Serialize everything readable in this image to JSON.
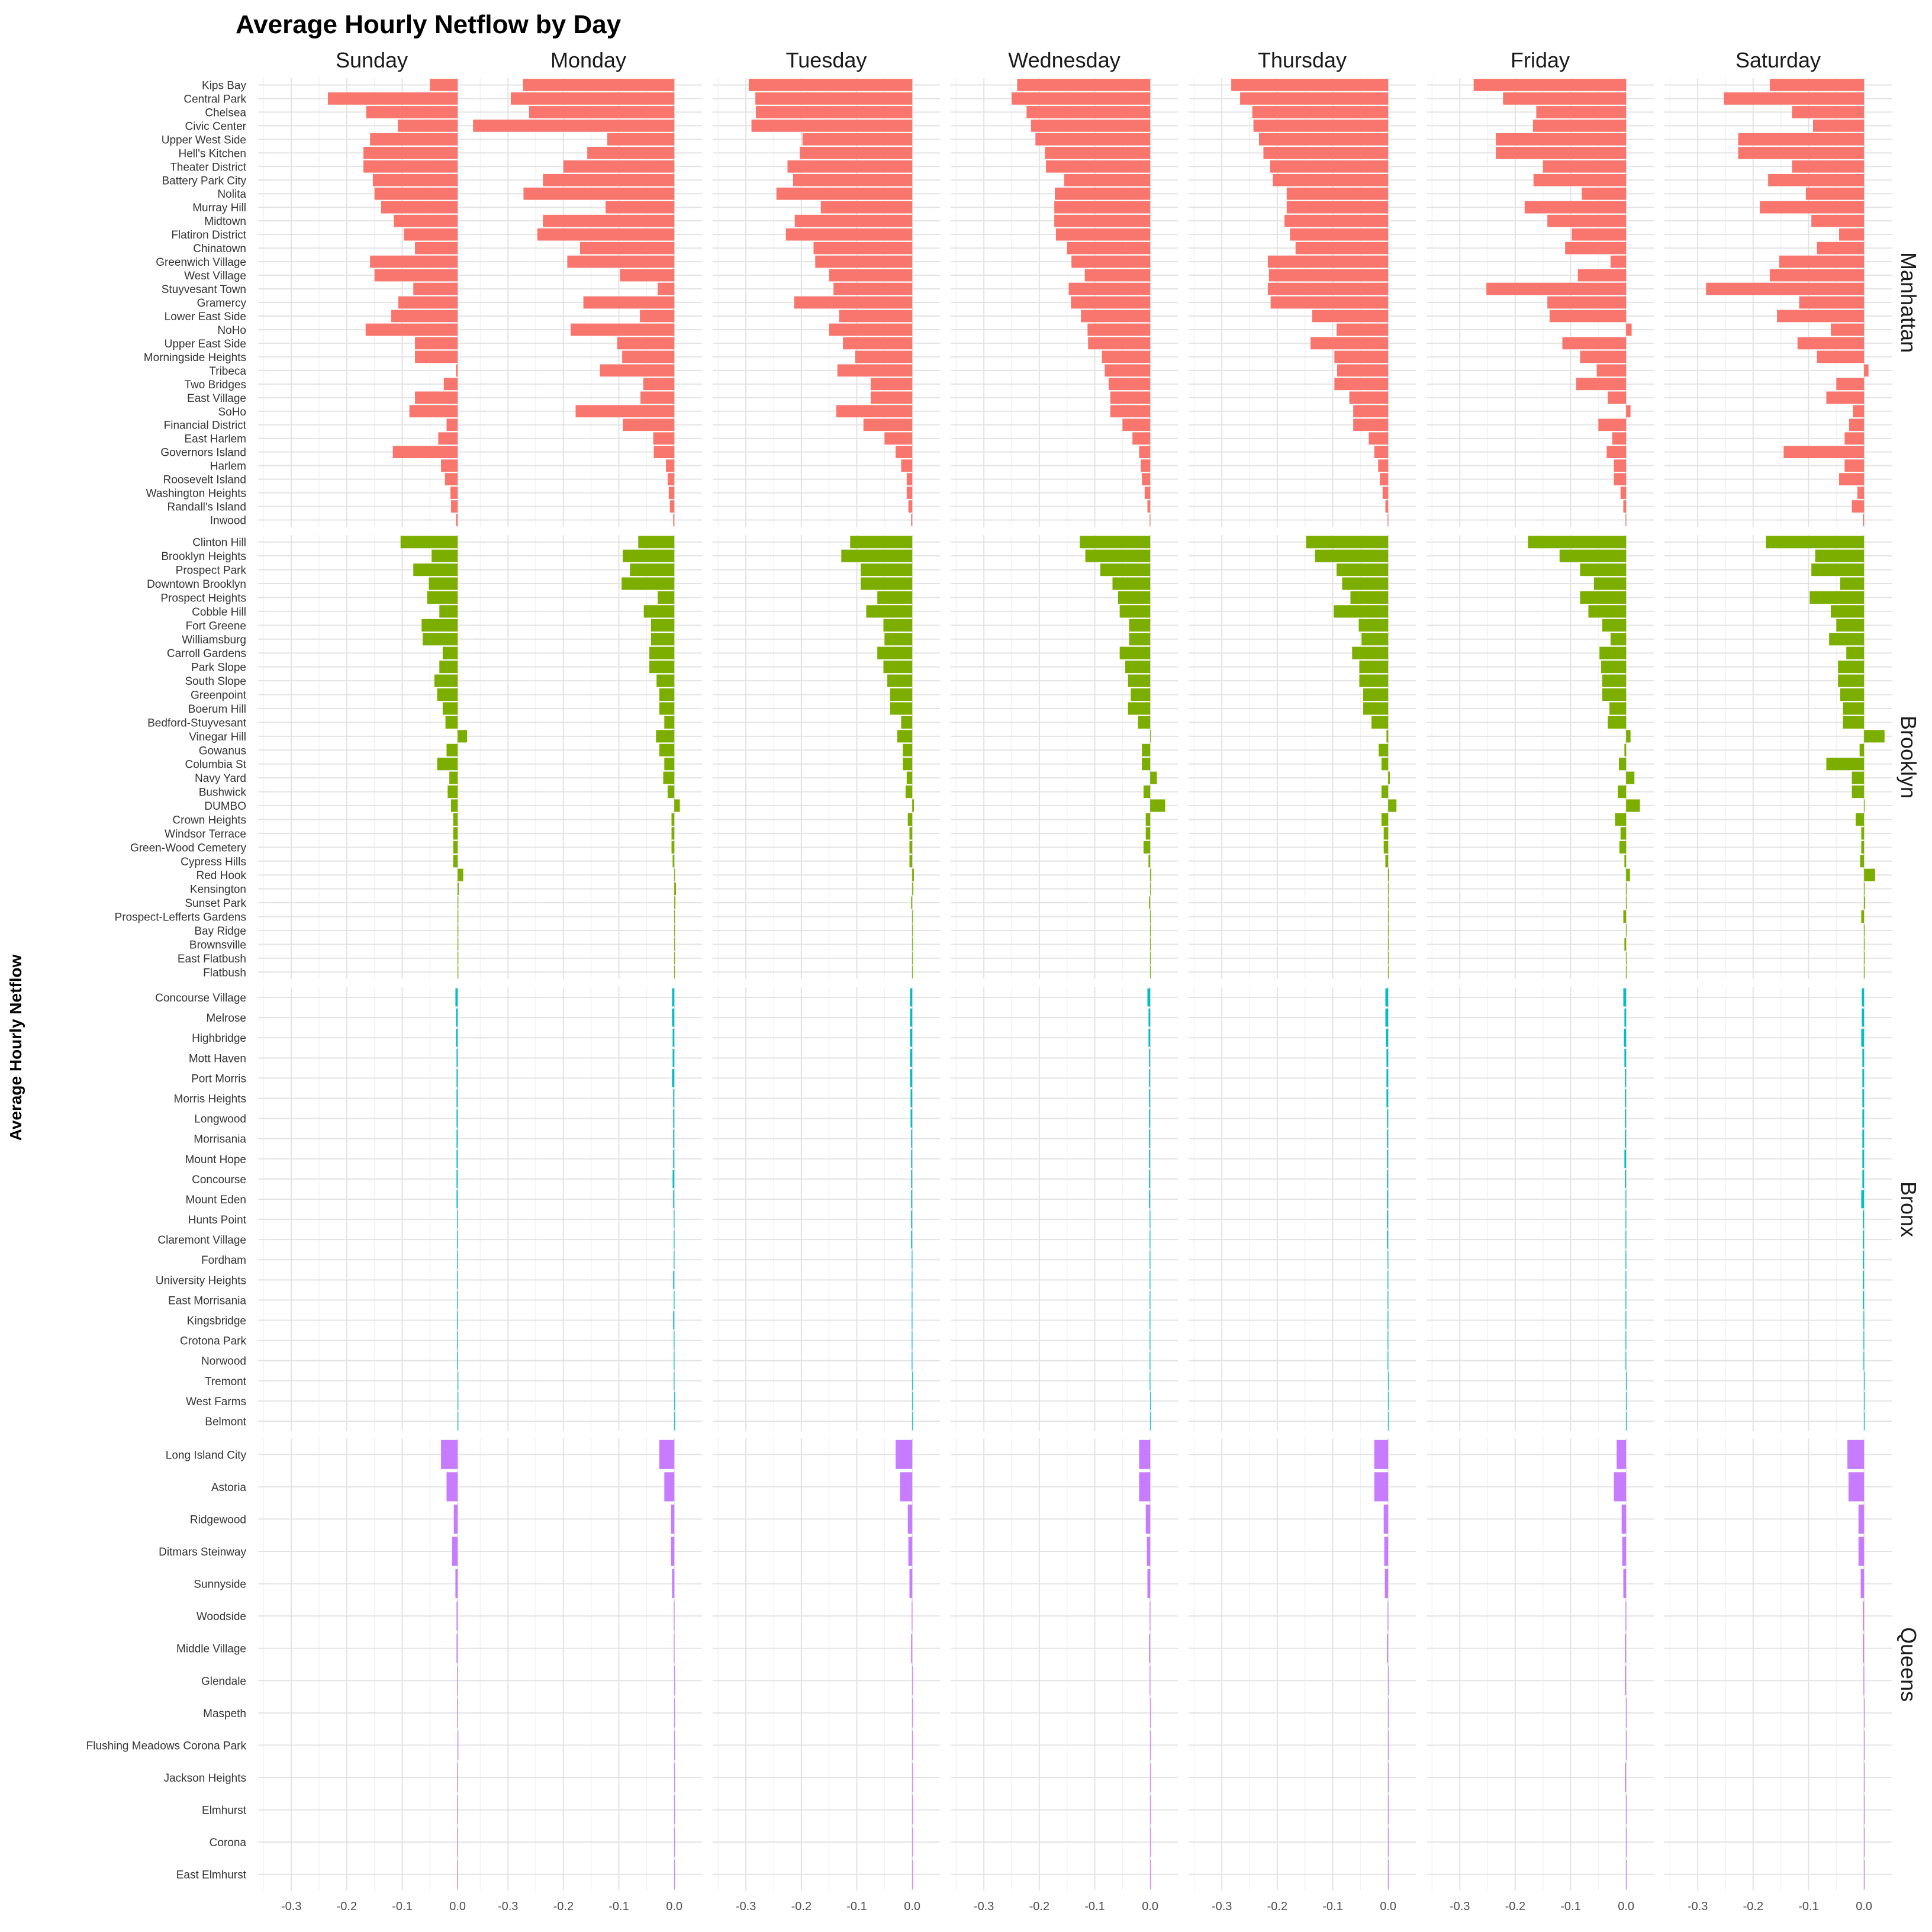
{
  "chart_data": {
    "type": "bar",
    "orientation": "horizontal",
    "title": "Average Hourly Netflow by Day",
    "ylabel": "Average Hourly Netflow",
    "xlim": [
      -0.36,
      0.05
    ],
    "x_ticks": [
      -0.3,
      -0.2,
      -0.1,
      0.0
    ],
    "x_tick_labels": [
      "-0.3",
      "-0.2",
      "-0.1",
      "0.0"
    ],
    "grid": true,
    "days": [
      "Sunday",
      "Monday",
      "Tuesday",
      "Wednesday",
      "Thursday",
      "Friday",
      "Saturday"
    ],
    "colors": {
      "Manhattan": "#F8766D",
      "Brooklyn": "#7CAE00",
      "Bronx": "#00BFC4",
      "Queens": "#C77CFF"
    },
    "boroughs": [
      {
        "name": "Manhattan",
        "neighborhoods": [
          "Kips Bay",
          "Central Park",
          "Chelsea",
          "Civic Center",
          "Upper West Side",
          "Hell's Kitchen",
          "Theater District",
          "Battery Park City",
          "Nolita",
          "Murray Hill",
          "Midtown",
          "Flatiron District",
          "Chinatown",
          "Greenwich Village",
          "West Village",
          "Stuyvesant Town",
          "Gramercy",
          "Lower East Side",
          "NoHo",
          "Upper East Side",
          "Morningside Heights",
          "Tribeca",
          "Two Bridges",
          "East Village",
          "SoHo",
          "Financial District",
          "East Harlem",
          "Governors Island",
          "Harlem",
          "Roosevelt Island",
          "Washington Heights",
          "Randall's Island",
          "Inwood"
        ],
        "values": [
          [
            -0.05,
            -0.234,
            -0.165,
            -0.108,
            -0.158,
            -0.17,
            -0.17,
            -0.153,
            -0.15,
            -0.138,
            -0.115,
            -0.097,
            -0.077,
            -0.158,
            -0.15,
            -0.08,
            -0.107,
            -0.12,
            -0.166,
            -0.077,
            -0.077,
            -0.003,
            -0.025,
            -0.077,
            -0.087,
            -0.02,
            -0.035,
            -0.117,
            -0.03,
            -0.023,
            -0.013,
            -0.012,
            -0.003
          ],
          [
            -0.273,
            -0.295,
            -0.262,
            -0.363,
            -0.121,
            -0.157,
            -0.2,
            -0.237,
            -0.272,
            -0.124,
            -0.237,
            -0.247,
            -0.17,
            -0.193,
            -0.098,
            -0.03,
            -0.164,
            -0.062,
            -0.187,
            -0.103,
            -0.094,
            -0.134,
            -0.056,
            -0.061,
            -0.178,
            -0.093,
            -0.038,
            -0.037,
            -0.015,
            -0.012,
            -0.01,
            -0.008,
            -0.002
          ],
          [
            -0.295,
            -0.283,
            -0.282,
            -0.29,
            -0.198,
            -0.203,
            -0.225,
            -0.215,
            -0.245,
            -0.165,
            -0.212,
            -0.228,
            -0.178,
            -0.175,
            -0.15,
            -0.142,
            -0.213,
            -0.132,
            -0.15,
            -0.125,
            -0.103,
            -0.135,
            -0.075,
            -0.075,
            -0.137,
            -0.088,
            -0.05,
            -0.03,
            -0.02,
            -0.01,
            -0.01,
            -0.007,
            -0.002
          ],
          [
            -0.24,
            -0.25,
            -0.223,
            -0.215,
            -0.207,
            -0.19,
            -0.188,
            -0.155,
            -0.172,
            -0.173,
            -0.173,
            -0.17,
            -0.15,
            -0.142,
            -0.118,
            -0.147,
            -0.143,
            -0.125,
            -0.113,
            -0.112,
            -0.087,
            -0.082,
            -0.075,
            -0.072,
            -0.072,
            -0.05,
            -0.032,
            -0.02,
            -0.017,
            -0.015,
            -0.01,
            -0.005,
            -0.001
          ],
          [
            -0.283,
            -0.267,
            -0.245,
            -0.243,
            -0.233,
            -0.225,
            -0.213,
            -0.208,
            -0.183,
            -0.183,
            -0.187,
            -0.177,
            -0.167,
            -0.217,
            -0.215,
            -0.217,
            -0.212,
            -0.137,
            -0.093,
            -0.14,
            -0.097,
            -0.092,
            -0.097,
            -0.07,
            -0.063,
            -0.063,
            -0.035,
            -0.025,
            -0.018,
            -0.015,
            -0.01,
            -0.005,
            -0.001
          ],
          [
            -0.275,
            -0.222,
            -0.162,
            -0.168,
            -0.235,
            -0.235,
            -0.15,
            -0.167,
            -0.08,
            -0.183,
            -0.142,
            -0.098,
            -0.11,
            -0.028,
            -0.087,
            -0.252,
            -0.142,
            -0.138,
            0.01,
            -0.115,
            -0.083,
            -0.053,
            -0.09,
            -0.033,
            0.008,
            -0.05,
            -0.025,
            -0.035,
            -0.022,
            -0.022,
            -0.01,
            -0.005,
            -0.001
          ],
          [
            -0.17,
            -0.253,
            -0.13,
            -0.092,
            -0.227,
            -0.227,
            -0.13,
            -0.173,
            -0.105,
            -0.188,
            -0.095,
            -0.045,
            -0.085,
            -0.153,
            -0.17,
            -0.285,
            -0.117,
            -0.157,
            -0.06,
            -0.12,
            -0.085,
            0.008,
            -0.05,
            -0.068,
            -0.02,
            -0.027,
            -0.035,
            -0.145,
            -0.035,
            -0.045,
            -0.012,
            -0.022,
            -0.002
          ]
        ]
      },
      {
        "name": "Brooklyn",
        "neighborhoods": [
          "Clinton Hill",
          "Brooklyn Heights",
          "Prospect Park",
          "Downtown Brooklyn",
          "Prospect Heights",
          "Cobble Hill",
          "Fort Greene",
          "Williamsburg",
          "Carroll Gardens",
          "Park Slope",
          "South Slope",
          "Greenpoint",
          "Boerum Hill",
          "Bedford-Stuyvesant",
          "Vinegar Hill",
          "Gowanus",
          "Columbia St",
          "Navy Yard",
          "Bushwick",
          "DUMBO",
          "Crown Heights",
          "Windsor Terrace",
          "Green-Wood Cemetery",
          "Cypress Hills",
          "Red Hook",
          "Kensington",
          "Sunset Park",
          "Prospect-Lefferts Gardens",
          "Bay Ridge",
          "Brownsville",
          "East Flatbush",
          "Flatbush"
        ],
        "values": [
          [
            -0.103,
            -0.047,
            -0.08,
            -0.052,
            -0.055,
            -0.033,
            -0.065,
            -0.063,
            -0.027,
            -0.033,
            -0.042,
            -0.037,
            -0.027,
            -0.022,
            0.017,
            -0.02,
            -0.037,
            -0.015,
            -0.018,
            -0.012,
            -0.008,
            -0.008,
            -0.008,
            -0.008,
            0.01,
            0.002,
            0.001,
            0.001,
            0.001,
            0.001,
            0.001,
            0.001
          ],
          [
            -0.065,
            -0.093,
            -0.08,
            -0.095,
            -0.03,
            -0.055,
            -0.042,
            -0.042,
            -0.045,
            -0.045,
            -0.032,
            -0.027,
            -0.027,
            -0.018,
            -0.033,
            -0.027,
            -0.018,
            -0.02,
            -0.012,
            0.01,
            -0.005,
            -0.005,
            -0.005,
            -0.003,
            0.0,
            0.003,
            0.002,
            0.0,
            0.0,
            0.0,
            0.0,
            0.0
          ],
          [
            -0.112,
            -0.128,
            -0.093,
            -0.093,
            -0.063,
            -0.083,
            -0.052,
            -0.05,
            -0.063,
            -0.052,
            -0.045,
            -0.04,
            -0.04,
            -0.02,
            -0.027,
            -0.017,
            -0.017,
            -0.01,
            -0.012,
            0.003,
            -0.008,
            -0.005,
            -0.005,
            -0.005,
            0.003,
            0.002,
            -0.002,
            0.0,
            0.0,
            0.0,
            0.0,
            0.0
          ],
          [
            -0.127,
            -0.117,
            -0.09,
            -0.068,
            -0.058,
            -0.055,
            -0.038,
            -0.038,
            -0.055,
            -0.045,
            -0.04,
            -0.035,
            -0.04,
            -0.022,
            0.0,
            -0.015,
            -0.015,
            0.012,
            -0.012,
            0.027,
            -0.008,
            -0.008,
            -0.012,
            -0.003,
            0.002,
            0.0,
            -0.002,
            0.0,
            0.0,
            0.0,
            0.0,
            0.0
          ],
          [
            -0.148,
            -0.132,
            -0.093,
            -0.083,
            -0.068,
            -0.098,
            -0.053,
            -0.048,
            -0.065,
            -0.052,
            -0.052,
            -0.045,
            -0.045,
            -0.03,
            -0.003,
            -0.017,
            -0.012,
            0.003,
            -0.012,
            0.015,
            -0.012,
            -0.008,
            -0.008,
            -0.005,
            0.002,
            0.0,
            0.0,
            0.0,
            0.0,
            0.0,
            0.0,
            0.0
          ],
          [
            -0.177,
            -0.12,
            -0.083,
            -0.058,
            -0.083,
            -0.068,
            -0.043,
            -0.028,
            -0.048,
            -0.045,
            -0.043,
            -0.043,
            -0.03,
            -0.033,
            0.008,
            -0.003,
            -0.013,
            0.015,
            -0.015,
            0.025,
            -0.02,
            -0.01,
            -0.012,
            -0.003,
            0.007,
            0.0,
            0.0,
            -0.005,
            0.0,
            -0.003,
            0.0,
            0.0
          ],
          [
            -0.177,
            -0.088,
            -0.095,
            -0.043,
            -0.098,
            -0.06,
            -0.05,
            -0.063,
            -0.032,
            -0.047,
            -0.047,
            -0.043,
            -0.038,
            -0.038,
            0.037,
            -0.008,
            -0.068,
            -0.022,
            -0.022,
            0.0,
            -0.015,
            -0.005,
            -0.005,
            -0.007,
            0.02,
            0.0,
            0.002,
            -0.005,
            0.001,
            0.0,
            0.0,
            0.0
          ]
        ]
      },
      {
        "name": "Bronx",
        "neighborhoods": [
          "Concourse Village",
          "Melrose",
          "Highbridge",
          "Mott Haven",
          "Port Morris",
          "Morris Heights",
          "Longwood",
          "Morrisania",
          "Mount Hope",
          "Concourse",
          "Mount Eden",
          "Hunts Point",
          "Claremont Village",
          "Fordham",
          "University Heights",
          "East Morrisania",
          "Kingsbridge",
          "Crotona Park",
          "Norwood",
          "Tremont",
          "West Farms",
          "Belmont"
        ],
        "values": [
          [
            -0.004,
            -0.003,
            -0.003,
            -0.002,
            -0.002,
            -0.002,
            -0.002,
            -0.002,
            -0.002,
            -0.002,
            -0.002,
            -0.001,
            -0.001,
            -0.001,
            -0.001,
            -0.001,
            -0.001,
            -0.001,
            -0.001,
            0.0,
            0.0,
            0.0
          ],
          [
            -0.004,
            -0.004,
            -0.003,
            -0.003,
            -0.004,
            -0.002,
            -0.002,
            -0.002,
            -0.002,
            -0.003,
            -0.002,
            -0.001,
            -0.001,
            -0.001,
            -0.002,
            -0.001,
            -0.002,
            -0.001,
            -0.001,
            -0.001,
            0.0,
            0.0
          ],
          [
            -0.004,
            -0.004,
            -0.004,
            -0.004,
            -0.004,
            -0.003,
            -0.003,
            -0.002,
            -0.002,
            -0.002,
            -0.002,
            -0.002,
            -0.002,
            -0.001,
            -0.001,
            -0.001,
            -0.001,
            -0.001,
            -0.001,
            0.0,
            0.0,
            0.0
          ],
          [
            -0.005,
            -0.003,
            -0.003,
            -0.002,
            -0.002,
            -0.002,
            -0.002,
            -0.002,
            -0.002,
            -0.002,
            -0.002,
            -0.001,
            -0.001,
            -0.001,
            -0.001,
            -0.001,
            -0.001,
            -0.001,
            -0.001,
            -0.001,
            0.0,
            0.0
          ],
          [
            -0.005,
            -0.005,
            -0.004,
            -0.003,
            -0.003,
            -0.003,
            -0.002,
            -0.002,
            -0.002,
            -0.002,
            -0.002,
            -0.002,
            -0.002,
            -0.001,
            -0.001,
            -0.001,
            -0.001,
            -0.001,
            -0.001,
            0.0,
            0.0,
            0.0
          ],
          [
            -0.005,
            -0.003,
            -0.004,
            -0.003,
            -0.002,
            -0.002,
            -0.002,
            -0.002,
            -0.003,
            -0.002,
            -0.001,
            -0.001,
            -0.001,
            -0.001,
            -0.001,
            -0.001,
            -0.001,
            -0.001,
            -0.001,
            0.0,
            0.0,
            0.0
          ],
          [
            -0.004,
            -0.004,
            -0.005,
            -0.003,
            -0.003,
            -0.003,
            -0.003,
            -0.003,
            -0.003,
            -0.003,
            -0.005,
            -0.002,
            -0.002,
            -0.002,
            -0.002,
            -0.002,
            -0.001,
            -0.001,
            -0.001,
            0.0,
            0.0,
            0.0
          ]
        ]
      },
      {
        "name": "Queens",
        "neighborhoods": [
          "Long Island City",
          "Astoria",
          "Ridgewood",
          "Ditmars Steinway",
          "Sunnyside",
          "Woodside",
          "Middle Village",
          "Glendale",
          "Maspeth",
          "Flushing Meadows Corona Park",
          "Jackson Heights",
          "Elmhurst",
          "Corona",
          "East Elmhurst"
        ],
        "values": [
          [
            -0.03,
            -0.02,
            -0.007,
            -0.01,
            -0.004,
            -0.002,
            -0.002,
            -0.001,
            -0.001,
            0.0,
            -0.001,
            -0.001,
            -0.001,
            -0.001
          ],
          [
            -0.027,
            -0.018,
            -0.006,
            -0.006,
            -0.004,
            -0.001,
            -0.001,
            0.0,
            0.0,
            0.0,
            0.0,
            0.0,
            0.0,
            0.0
          ],
          [
            -0.03,
            -0.022,
            -0.008,
            -0.007,
            -0.005,
            -0.001,
            -0.002,
            0.0,
            0.0,
            0.0,
            0.0,
            0.0,
            0.0,
            0.0
          ],
          [
            -0.02,
            -0.02,
            -0.008,
            -0.006,
            -0.005,
            -0.001,
            -0.002,
            -0.001,
            0.0,
            0.0,
            0.0,
            0.0,
            0.0,
            0.0
          ],
          [
            -0.025,
            -0.025,
            -0.008,
            -0.007,
            -0.006,
            -0.001,
            -0.002,
            0.0,
            0.0,
            0.0,
            0.0,
            0.0,
            0.0,
            0.0
          ],
          [
            -0.017,
            -0.022,
            -0.008,
            -0.007,
            -0.005,
            -0.001,
            -0.002,
            -0.002,
            0.0,
            0.0,
            -0.002,
            0.0,
            0.0,
            0.0
          ],
          [
            -0.03,
            -0.028,
            -0.01,
            -0.01,
            -0.006,
            -0.002,
            -0.002,
            -0.001,
            0.0,
            0.0,
            0.0,
            0.0,
            0.0,
            0.0
          ]
        ]
      }
    ]
  }
}
